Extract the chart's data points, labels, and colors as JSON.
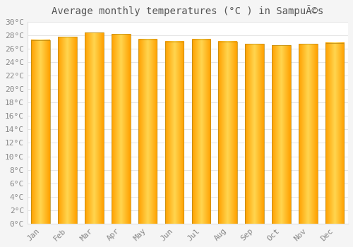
{
  "title": "Average monthly temperatures (°C ) in SampuÃ©s",
  "months": [
    "Jan",
    "Feb",
    "Mar",
    "Apr",
    "May",
    "Jun",
    "Jul",
    "Aug",
    "Sep",
    "Oct",
    "Nov",
    "Dec"
  ],
  "values": [
    27.3,
    27.8,
    28.4,
    28.2,
    27.4,
    27.1,
    27.4,
    27.1,
    26.7,
    26.5,
    26.7,
    26.9
  ],
  "bar_color_center": "#FFD54F",
  "bar_color_edge": "#FFA000",
  "bar_edge_color": "#B8860B",
  "background_color": "#F5F5F5",
  "plot_bg_color": "#FFFFFF",
  "grid_color": "#E0E0E0",
  "text_color": "#888888",
  "ylim_min": 0,
  "ylim_max": 30,
  "ytick_step": 2,
  "title_fontsize": 10,
  "tick_fontsize": 8,
  "bar_width": 0.7
}
